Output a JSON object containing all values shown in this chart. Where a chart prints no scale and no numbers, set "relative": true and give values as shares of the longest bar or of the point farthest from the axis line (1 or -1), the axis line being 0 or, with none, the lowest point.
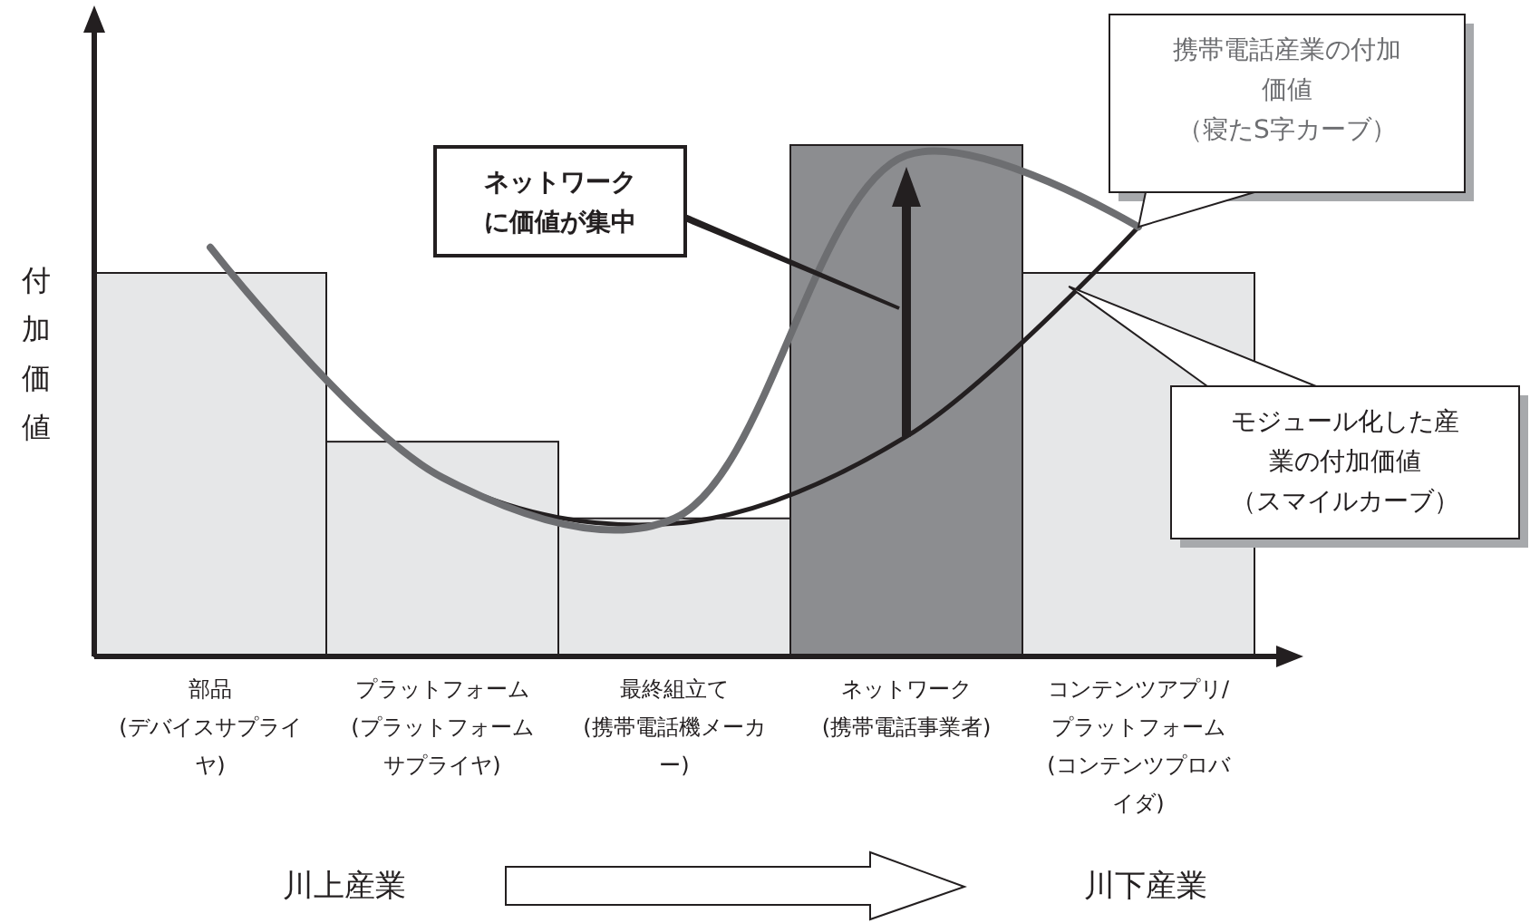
{
  "chart_data": {
    "type": "bar",
    "relative": true,
    "ylabel": "付加価値",
    "categories": [
      "部品(デバイスサプライヤ)",
      "プラットフォーム(プラットフォームサプライヤ)",
      "最終組立て(携帯電話機メーカー)",
      "ネットワーク(携帯電話事業者)",
      "コンテンツアプリ/プラットフォーム(コンテンツプロバイダ)"
    ],
    "series": [
      {
        "colors": [
          "#e6e7e8",
          "#e6e7e8",
          "#e6e7e8",
          "#8c8d90",
          "#e6e7e8"
        ],
        "values": [
          0.75,
          0.42,
          0.27,
          1,
          0.75
        ]
      },
      {
        "type": "line",
        "name": "モジュール化した産業の付加価値（スマイルカーブ）",
        "color": "#231f20",
        "values": [
          0.8,
          0.35,
          0.26,
          0.43,
          0.84
        ]
      },
      {
        "type": "line",
        "name": "携帯電話産業の付加価値（寝たS字カーブ）",
        "color": "#6d6e71",
        "values": [
          0.8,
          0.35,
          0.27,
          0.98,
          0.84
        ]
      }
    ],
    "annotations": [
      "ネットワークに価値が集中",
      "川上産業",
      "川下産業"
    ],
    "grid": false,
    "legend": false
  }
}
